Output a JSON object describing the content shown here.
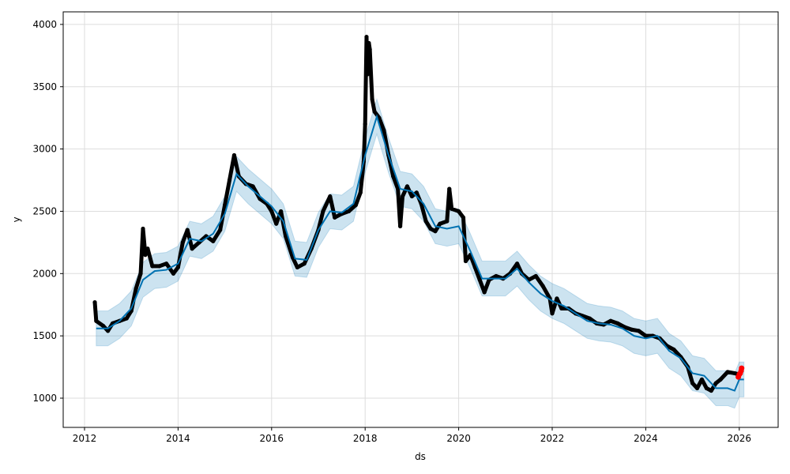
{
  "chart_data": {
    "type": "line",
    "title": "",
    "xlabel": "ds",
    "ylabel": "y",
    "xlim": [
      2011.55,
      2026.8
    ],
    "ylim": [
      760,
      4100
    ],
    "xticks": [
      "2012",
      "2014",
      "2016",
      "2018",
      "2020",
      "2022",
      "2024",
      "2026"
    ],
    "yticks": [
      "1000",
      "1500",
      "2000",
      "2500",
      "3000",
      "3500",
      "4000"
    ],
    "grid": true,
    "colors": {
      "observed": "#000000",
      "forecast": "#0072b2",
      "interval": "#0072b2",
      "recent": "#ff0000"
    },
    "observed": {
      "x": [
        2012.22,
        2012.25,
        2012.4,
        2012.5,
        2012.6,
        2012.75,
        2012.9,
        2013.0,
        2013.1,
        2013.2,
        2013.25,
        2013.3,
        2013.35,
        2013.45,
        2013.6,
        2013.75,
        2013.9,
        2014.0,
        2014.1,
        2014.2,
        2014.3,
        2014.45,
        2014.6,
        2014.75,
        2014.9,
        2015.0,
        2015.1,
        2015.2,
        2015.3,
        2015.45,
        2015.6,
        2015.75,
        2015.9,
        2016.0,
        2016.1,
        2016.2,
        2016.3,
        2016.45,
        2016.55,
        2016.7,
        2016.85,
        2017.0,
        2017.1,
        2017.25,
        2017.35,
        2017.5,
        2017.65,
        2017.8,
        2017.9,
        2017.97,
        2018.0,
        2018.03,
        2018.05,
        2018.08,
        2018.1,
        2018.15,
        2018.2,
        2018.3,
        2018.4,
        2018.5,
        2018.6,
        2018.7,
        2018.75,
        2018.8,
        2018.9,
        2019.0,
        2019.1,
        2019.2,
        2019.3,
        2019.4,
        2019.5,
        2019.6,
        2019.75,
        2019.8,
        2019.85,
        2020.0,
        2020.1,
        2020.15,
        2020.25,
        2020.35,
        2020.45,
        2020.55,
        2020.65,
        2020.8,
        2020.95,
        2021.1,
        2021.25,
        2021.35,
        2021.5,
        2021.65,
        2021.8,
        2021.95,
        2022.0,
        2022.1,
        2022.2,
        2022.35,
        2022.5,
        2022.65,
        2022.8,
        2022.95,
        2023.1,
        2023.25,
        2023.4,
        2023.55,
        2023.7,
        2023.85,
        2024.0,
        2024.15,
        2024.3,
        2024.45,
        2024.6,
        2024.75,
        2024.9,
        2025.0,
        2025.1,
        2025.2,
        2025.3,
        2025.4,
        2025.5,
        2025.6,
        2025.75,
        2025.9,
        2026.0
      ],
      "y": [
        1770,
        1620,
        1580,
        1540,
        1600,
        1620,
        1640,
        1700,
        1880,
        2000,
        2360,
        2150,
        2200,
        2060,
        2060,
        2080,
        2000,
        2050,
        2250,
        2350,
        2200,
        2250,
        2300,
        2260,
        2350,
        2550,
        2750,
        2950,
        2780,
        2720,
        2700,
        2600,
        2560,
        2500,
        2400,
        2500,
        2300,
        2130,
        2050,
        2080,
        2200,
        2350,
        2500,
        2620,
        2450,
        2480,
        2500,
        2550,
        2650,
        2900,
        3200,
        3900,
        3600,
        3850,
        3800,
        3400,
        3300,
        3250,
        3150,
        2950,
        2780,
        2680,
        2380,
        2620,
        2700,
        2620,
        2650,
        2560,
        2420,
        2360,
        2340,
        2400,
        2420,
        2680,
        2520,
        2500,
        2450,
        2100,
        2150,
        2050,
        1950,
        1850,
        1950,
        1980,
        1960,
        2000,
        2080,
        2000,
        1950,
        1980,
        1900,
        1800,
        1680,
        1800,
        1720,
        1720,
        1680,
        1660,
        1640,
        1600,
        1590,
        1620,
        1600,
        1570,
        1550,
        1540,
        1500,
        1500,
        1480,
        1420,
        1390,
        1330,
        1250,
        1120,
        1080,
        1150,
        1080,
        1060,
        1120,
        1150,
        1210,
        1200,
        1190
      ]
    },
    "recent": {
      "x": [
        2025.98,
        2026.0,
        2026.02,
        2026.04,
        2026.05
      ],
      "y": [
        1170,
        1190,
        1200,
        1220,
        1240
      ]
    },
    "forecast": {
      "x": [
        2012.25,
        2012.5,
        2012.75,
        2013.0,
        2013.25,
        2013.5,
        2013.75,
        2014.0,
        2014.25,
        2014.5,
        2014.75,
        2015.0,
        2015.25,
        2015.5,
        2015.75,
        2016.0,
        2016.25,
        2016.5,
        2016.75,
        2017.0,
        2017.25,
        2017.5,
        2017.75,
        2018.0,
        2018.25,
        2018.5,
        2018.75,
        2019.0,
        2019.25,
        2019.5,
        2019.75,
        2020.0,
        2020.25,
        2020.5,
        2020.75,
        2021.0,
        2021.25,
        2021.5,
        2021.75,
        2022.0,
        2022.25,
        2022.5,
        2022.75,
        2023.0,
        2023.25,
        2023.5,
        2023.75,
        2024.0,
        2024.25,
        2024.5,
        2024.75,
        2025.0,
        2025.25,
        2025.5,
        2025.75,
        2025.9,
        2026.0,
        2026.1
      ],
      "yhat": [
        1560,
        1560,
        1620,
        1720,
        1950,
        2020,
        2030,
        2080,
        2280,
        2260,
        2320,
        2480,
        2800,
        2700,
        2620,
        2540,
        2420,
        2120,
        2110,
        2350,
        2500,
        2490,
        2560,
        2950,
        3260,
        2950,
        2680,
        2660,
        2560,
        2380,
        2360,
        2380,
        2180,
        1960,
        1960,
        1960,
        2040,
        1930,
        1840,
        1780,
        1740,
        1680,
        1620,
        1600,
        1590,
        1560,
        1500,
        1480,
        1500,
        1380,
        1320,
        1200,
        1180,
        1080,
        1080,
        1060,
        1150,
        1150
      ],
      "yhat_lower": [
        1420,
        1420,
        1480,
        1580,
        1810,
        1880,
        1890,
        1940,
        2140,
        2120,
        2180,
        2340,
        2660,
        2560,
        2480,
        2400,
        2280,
        1980,
        1970,
        2210,
        2360,
        2350,
        2420,
        2810,
        3120,
        2810,
        2540,
        2520,
        2420,
        2240,
        2220,
        2240,
        2040,
        1820,
        1820,
        1820,
        1900,
        1790,
        1700,
        1640,
        1600,
        1540,
        1480,
        1460,
        1450,
        1420,
        1360,
        1340,
        1360,
        1240,
        1180,
        1060,
        1040,
        940,
        940,
        920,
        1010,
        1010
      ],
      "yhat_upper": [
        1700,
        1700,
        1760,
        1860,
        2090,
        2160,
        2170,
        2220,
        2420,
        2400,
        2460,
        2620,
        2940,
        2840,
        2760,
        2680,
        2560,
        2260,
        2250,
        2490,
        2640,
        2630,
        2700,
        3090,
        3400,
        3090,
        2820,
        2800,
        2700,
        2520,
        2500,
        2520,
        2320,
        2100,
        2100,
        2100,
        2180,
        2070,
        1980,
        1920,
        1880,
        1820,
        1760,
        1740,
        1730,
        1700,
        1640,
        1620,
        1640,
        1520,
        1460,
        1340,
        1320,
        1220,
        1220,
        1200,
        1290,
        1290
      ]
    }
  }
}
